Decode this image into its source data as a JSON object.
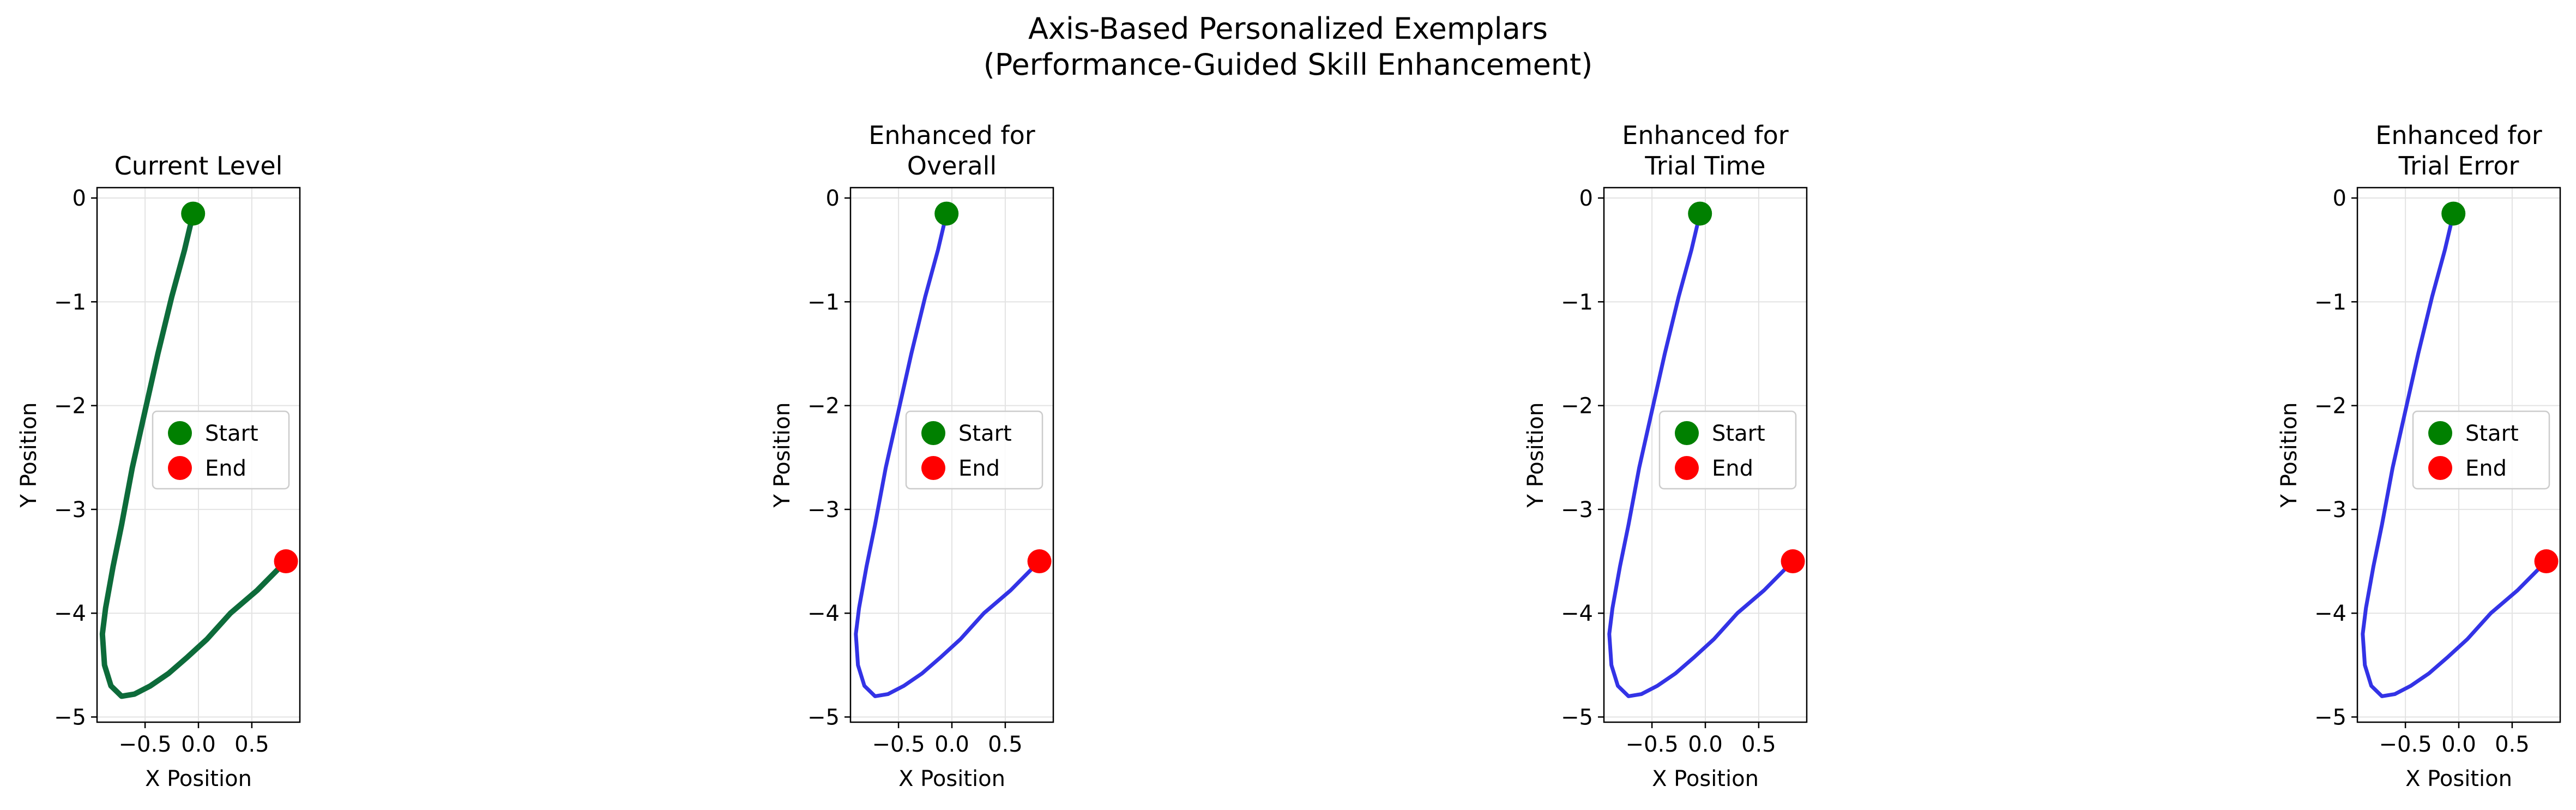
{
  "figure": {
    "title_line1": "Axis-Based Personalized Exemplars",
    "title_line2": "(Performance-Guided Skill Enhancement)"
  },
  "chart_data": [
    {
      "type": "line",
      "title": [
        "Current Level"
      ],
      "xlabel": "X Position",
      "ylabel": "Y Position",
      "xlim": [
        -0.95,
        0.95
      ],
      "ylim": [
        -5.05,
        0.1
      ],
      "xticks": [
        -0.5,
        0.0,
        0.5
      ],
      "xtick_labels": [
        "−0.5",
        "0.0",
        "0.5"
      ],
      "yticks": [
        0,
        -1,
        -2,
        -3,
        -4,
        -5
      ],
      "ytick_labels": [
        "0",
        "−1",
        "−2",
        "−3",
        "−4",
        "−5"
      ],
      "grid": true,
      "legend": "center-right",
      "line_color": "#0d6b3a",
      "thick": true,
      "start": {
        "x": -0.05,
        "y": -0.15,
        "label": "Start",
        "color": "#008000"
      },
      "end": {
        "x": 0.82,
        "y": -3.5,
        "label": "End",
        "color": "#ff0000"
      },
      "series": [
        {
          "x": [
            -0.05,
            -0.13,
            -0.25,
            -0.38,
            -0.5,
            -0.62,
            -0.72,
            -0.8,
            -0.87,
            -0.9,
            -0.88,
            -0.82,
            -0.72,
            -0.6,
            -0.45,
            -0.28,
            -0.1,
            0.08,
            0.3,
            0.55,
            0.82
          ],
          "y": [
            -0.15,
            -0.5,
            -0.95,
            -1.5,
            -2.05,
            -2.6,
            -3.15,
            -3.55,
            -3.95,
            -4.2,
            -4.5,
            -4.7,
            -4.8,
            -4.78,
            -4.7,
            -4.58,
            -4.42,
            -4.25,
            -4.0,
            -3.78,
            -3.5
          ]
        }
      ]
    },
    {
      "type": "line",
      "title": [
        "Enhanced for",
        "Overall"
      ],
      "xlabel": "X Position",
      "ylabel": "Y Position",
      "xlim": [
        -0.95,
        0.95
      ],
      "ylim": [
        -5.05,
        0.1
      ],
      "xticks": [
        -0.5,
        0.0,
        0.5
      ],
      "xtick_labels": [
        "−0.5",
        "0.0",
        "0.5"
      ],
      "yticks": [
        0,
        -1,
        -2,
        -3,
        -4,
        -5
      ],
      "ytick_labels": [
        "0",
        "−1",
        "−2",
        "−3",
        "−4",
        "−5"
      ],
      "grid": true,
      "legend": "center-right",
      "line_color": "#3333e6",
      "thick": false,
      "start": {
        "x": -0.05,
        "y": -0.15,
        "label": "Start",
        "color": "#008000"
      },
      "end": {
        "x": 0.82,
        "y": -3.5,
        "label": "End",
        "color": "#ff0000"
      },
      "series": [
        {
          "x": [
            -0.05,
            -0.13,
            -0.25,
            -0.38,
            -0.5,
            -0.62,
            -0.72,
            -0.8,
            -0.87,
            -0.9,
            -0.88,
            -0.82,
            -0.72,
            -0.6,
            -0.45,
            -0.28,
            -0.1,
            0.08,
            0.3,
            0.55,
            0.82
          ],
          "y": [
            -0.15,
            -0.5,
            -0.95,
            -1.5,
            -2.05,
            -2.6,
            -3.15,
            -3.55,
            -3.95,
            -4.2,
            -4.5,
            -4.7,
            -4.8,
            -4.78,
            -4.7,
            -4.58,
            -4.42,
            -4.25,
            -4.0,
            -3.78,
            -3.5
          ]
        }
      ]
    },
    {
      "type": "line",
      "title": [
        "Enhanced for",
        "Trial Time"
      ],
      "xlabel": "X Position",
      "ylabel": "Y Position",
      "xlim": [
        -0.95,
        0.95
      ],
      "ylim": [
        -5.05,
        0.1
      ],
      "xticks": [
        -0.5,
        0.0,
        0.5
      ],
      "xtick_labels": [
        "−0.5",
        "0.0",
        "0.5"
      ],
      "yticks": [
        0,
        -1,
        -2,
        -3,
        -4,
        -5
      ],
      "ytick_labels": [
        "0",
        "−1",
        "−2",
        "−3",
        "−4",
        "−5"
      ],
      "grid": true,
      "legend": "center-right",
      "line_color": "#3333e6",
      "thick": false,
      "start": {
        "x": -0.05,
        "y": -0.15,
        "label": "Start",
        "color": "#008000"
      },
      "end": {
        "x": 0.82,
        "y": -3.5,
        "label": "End",
        "color": "#ff0000"
      },
      "series": [
        {
          "x": [
            -0.05,
            -0.13,
            -0.25,
            -0.38,
            -0.5,
            -0.62,
            -0.72,
            -0.8,
            -0.87,
            -0.9,
            -0.88,
            -0.82,
            -0.72,
            -0.6,
            -0.45,
            -0.28,
            -0.1,
            0.08,
            0.3,
            0.55,
            0.82
          ],
          "y": [
            -0.15,
            -0.5,
            -0.95,
            -1.5,
            -2.05,
            -2.6,
            -3.15,
            -3.55,
            -3.95,
            -4.2,
            -4.5,
            -4.7,
            -4.8,
            -4.78,
            -4.7,
            -4.58,
            -4.42,
            -4.25,
            -4.0,
            -3.78,
            -3.5
          ]
        }
      ]
    },
    {
      "type": "line",
      "title": [
        "Enhanced for",
        "Trial Error"
      ],
      "xlabel": "X Position",
      "ylabel": "Y Position",
      "xlim": [
        -0.95,
        0.95
      ],
      "ylim": [
        -5.05,
        0.1
      ],
      "xticks": [
        -0.5,
        0.0,
        0.5
      ],
      "xtick_labels": [
        "−0.5",
        "0.0",
        "0.5"
      ],
      "yticks": [
        0,
        -1,
        -2,
        -3,
        -4,
        -5
      ],
      "ytick_labels": [
        "0",
        "−1",
        "−2",
        "−3",
        "−4",
        "−5"
      ],
      "grid": true,
      "legend": "center-right",
      "line_color": "#3333e6",
      "thick": false,
      "start": {
        "x": -0.05,
        "y": -0.15,
        "label": "Start",
        "color": "#008000"
      },
      "end": {
        "x": 0.82,
        "y": -3.5,
        "label": "End",
        "color": "#ff0000"
      },
      "series": [
        {
          "x": [
            -0.05,
            -0.13,
            -0.25,
            -0.38,
            -0.5,
            -0.62,
            -0.72,
            -0.8,
            -0.87,
            -0.9,
            -0.88,
            -0.82,
            -0.72,
            -0.6,
            -0.45,
            -0.28,
            -0.1,
            0.08,
            0.3,
            0.55,
            0.82
          ],
          "y": [
            -0.15,
            -0.5,
            -0.95,
            -1.5,
            -2.05,
            -2.6,
            -3.15,
            -3.55,
            -3.95,
            -4.2,
            -4.5,
            -4.7,
            -4.8,
            -4.78,
            -4.7,
            -4.58,
            -4.42,
            -4.25,
            -4.0,
            -3.78,
            -3.5
          ]
        }
      ]
    }
  ]
}
